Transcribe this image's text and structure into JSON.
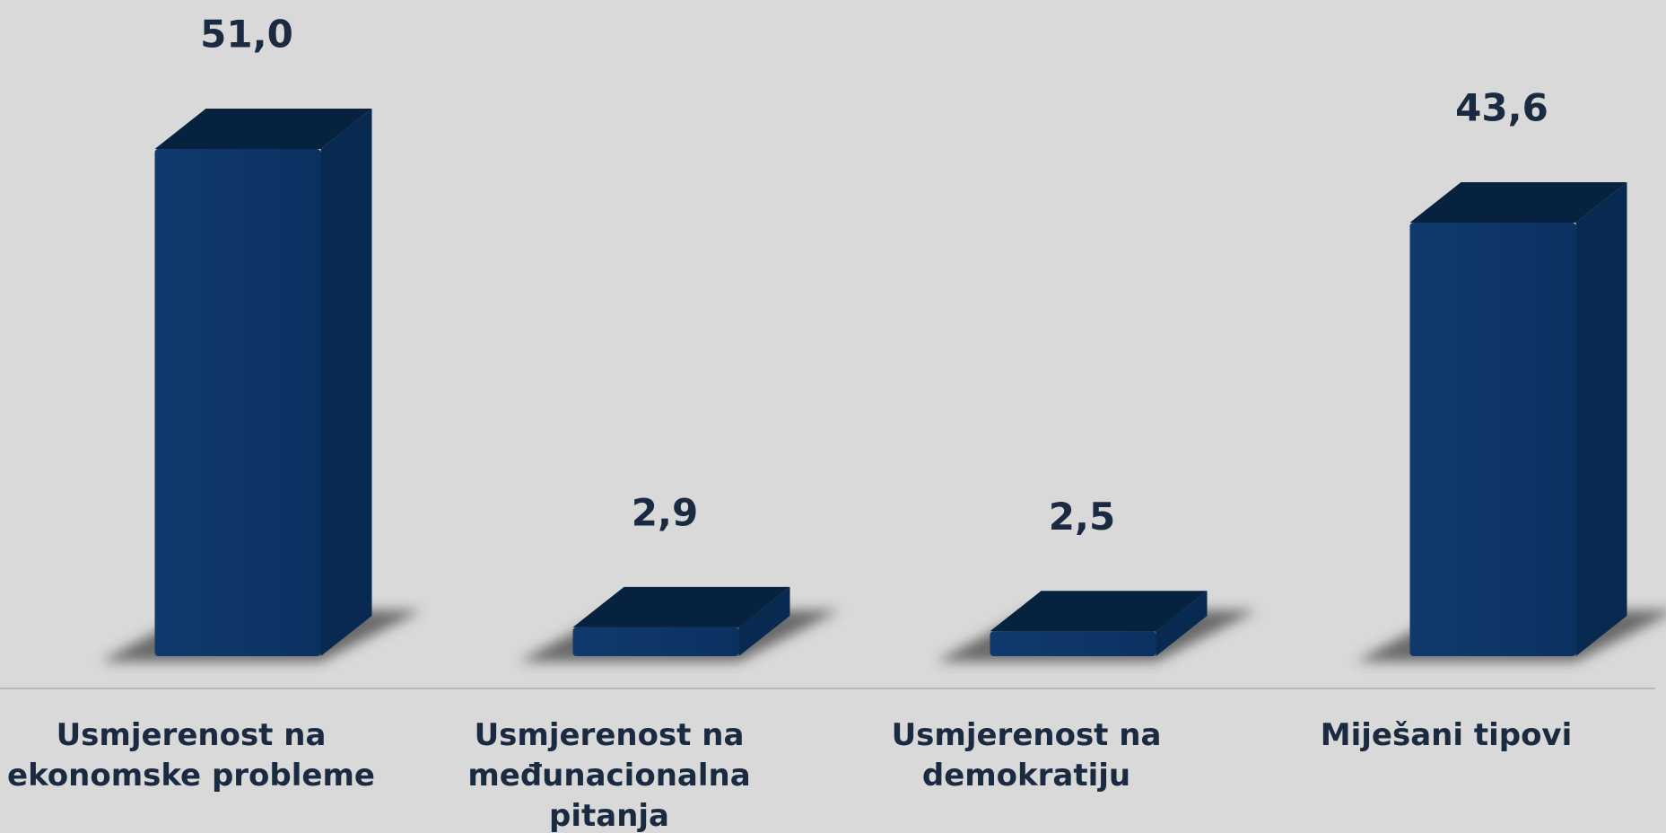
{
  "chart_data": {
    "type": "bar3d",
    "categories": [
      [
        "Usmjerenost na",
        "ekonomske probleme"
      ],
      [
        "Usmjerenost na",
        "međunacionalna",
        "pitanja"
      ],
      [
        "Usmjerenost na",
        "demokratiju"
      ],
      [
        "Miješani tipovi"
      ]
    ],
    "values": [
      51.0,
      2.9,
      2.5,
      43.6
    ],
    "value_labels": [
      "51,0",
      "2,9",
      "2,5",
      "43,6"
    ],
    "color": "#0d3566"
  }
}
